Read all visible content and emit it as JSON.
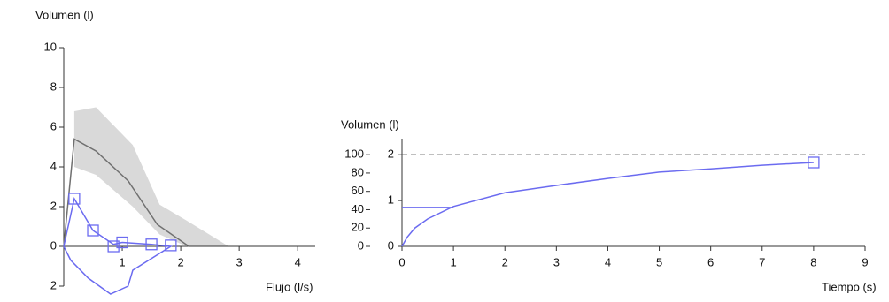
{
  "chart_data": [
    {
      "type": "line",
      "title": "Volumen (l)",
      "x_label": "Flujo (l/s)",
      "xlim": [
        0,
        4.3
      ],
      "ylim": [
        -2,
        10
      ],
      "xticks": [
        1,
        2,
        3,
        4
      ],
      "yticks": [
        {
          "value": -2,
          "label": "2"
        },
        0,
        2,
        4,
        6,
        8,
        10
      ],
      "band": {
        "color": "#d9d9d9",
        "x": [
          0.18,
          0.55,
          1.18,
          1.64,
          2.1,
          2.82
        ],
        "upper": [
          6.8,
          7.0,
          5.1,
          2.1,
          1.3,
          0
        ],
        "lower": [
          4.0,
          3.6,
          2.0,
          0.6,
          0,
          0
        ]
      },
      "series": [
        {
          "color": "#707070",
          "x": [
            0,
            0.18,
            0.55,
            1.1,
            1.6,
            2.14
          ],
          "values": [
            0,
            5.4,
            4.8,
            3.3,
            1.1,
            0
          ]
        },
        {
          "color": "#6b6bf0",
          "x": [
            0,
            0.18,
            0.5,
            0.85,
            1.0,
            1.5,
            1.83,
            1.18,
            1.1,
            0.8,
            0.42,
            0.12,
            0
          ],
          "values": [
            0,
            2.4,
            0.8,
            0.1,
            0.2,
            0.1,
            0,
            -1.2,
            -2.0,
            -2.4,
            -1.6,
            -0.7,
            0
          ]
        },
        {
          "color": "#6b6bf0",
          "marker": "square",
          "x": [
            0.18,
            0.5,
            0.85,
            1.0,
            1.5,
            1.83
          ],
          "values": [
            2.4,
            0.8,
            0,
            0.2,
            0.1,
            0.05
          ]
        }
      ]
    },
    {
      "type": "line",
      "title": "Volumen (l)",
      "x_label": "Tiempo (s)",
      "xlim": [
        0,
        9
      ],
      "ylim": [
        0,
        2.35
      ],
      "y2lim": [
        0,
        117.5
      ],
      "y2_position": "left",
      "xticks": [
        0,
        1,
        2,
        3,
        4,
        5,
        6,
        7,
        8,
        9
      ],
      "yticks": [
        0,
        1,
        2
      ],
      "y2ticks": [
        0,
        20,
        40,
        60,
        80,
        100
      ],
      "reference_line": {
        "value": 2,
        "color": "#555555",
        "style": "dashed"
      },
      "series": [
        {
          "color": "#6b6bf0",
          "x": [
            0,
            0.1,
            0.25,
            0.5,
            1,
            2,
            3,
            4,
            5,
            6,
            7,
            8
          ],
          "values": [
            0,
            0.2,
            0.4,
            0.6,
            0.87,
            1.17,
            1.33,
            1.48,
            1.62,
            1.69,
            1.77,
            1.83
          ]
        },
        {
          "color": "#6b6bf0",
          "x": [
            0,
            1
          ],
          "values": [
            0.85,
            0.85
          ]
        },
        {
          "color": "#6b6bf0",
          "marker": "square",
          "x": [
            8
          ],
          "values": [
            1.83
          ]
        }
      ]
    }
  ]
}
